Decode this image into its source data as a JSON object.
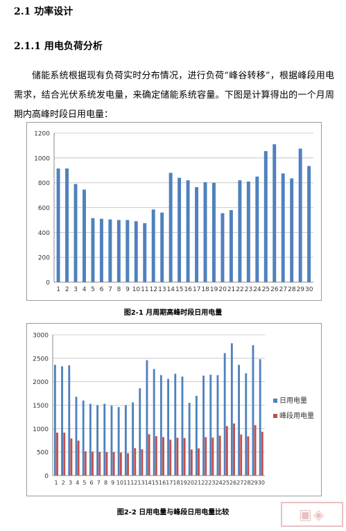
{
  "section_heading": "2.1 功率设计",
  "subsection_heading": "2.1.1 用电负荷分析",
  "paragraph": "储能系统根据现有负荷实时分布情况，进行负荷“峰谷转移”，根据峰段用电需求，结合光伏系统发电量，来确定储能系统容量。下图是计算得出的一个月周期内高峰时段日用电量：",
  "figure1_caption": "图2-1  月周期高峰时段日用电量",
  "figure2_caption": "图2-2  日用电量与峰段日用电量比较",
  "colors": {
    "daily": "#4f81bd",
    "peak": "#c0504d"
  },
  "watermark_icon": "seal-icon",
  "chart_data": [
    {
      "type": "bar",
      "title": "",
      "xlabel": "",
      "ylabel": "",
      "ylim": [
        0,
        1200
      ],
      "yticks": [
        0,
        200,
        400,
        600,
        800,
        1000,
        1200
      ],
      "grid": true,
      "categories": [
        "1",
        "2",
        "3",
        "4",
        "5",
        "6",
        "7",
        "8",
        "9",
        "10",
        "11",
        "12",
        "13",
        "14",
        "15",
        "16",
        "17",
        "18",
        "19",
        "20",
        "21",
        "22",
        "23",
        "24",
        "25",
        "26",
        "27",
        "28",
        "29",
        "30"
      ],
      "series": [
        {
          "values": [
            915,
            915,
            790,
            745,
            515,
            510,
            505,
            500,
            500,
            490,
            475,
            585,
            560,
            880,
            840,
            820,
            765,
            805,
            800,
            555,
            580,
            820,
            810,
            850,
            1055,
            1110,
            875,
            835,
            1075,
            935
          ]
        }
      ]
    },
    {
      "type": "bar",
      "title": "",
      "xlabel": "",
      "ylabel": "",
      "ylim": [
        0,
        3000
      ],
      "yticks": [
        0,
        500,
        1000,
        1500,
        2000,
        2500,
        3000
      ],
      "grid": true,
      "legend_position": "right",
      "categories": [
        "1",
        "2",
        "3",
        "4",
        "5",
        "6",
        "7",
        "8",
        "9",
        "10",
        "11",
        "12",
        "13",
        "14",
        "15",
        "16",
        "17",
        "18",
        "19",
        "20",
        "21",
        "22",
        "23",
        "24",
        "25",
        "26",
        "27",
        "28",
        "29",
        "30"
      ],
      "series": [
        {
          "name": "日用电量",
          "values": [
            2360,
            2330,
            2350,
            1680,
            1600,
            1530,
            1500,
            1530,
            1490,
            1460,
            1500,
            1560,
            1860,
            2460,
            2270,
            2140,
            2060,
            2170,
            2110,
            1550,
            1700,
            2130,
            2150,
            2140,
            2610,
            2820,
            2360,
            2180,
            2780,
            2480
          ]
        },
        {
          "name": "峰段用电量",
          "values": [
            915,
            915,
            790,
            745,
            515,
            510,
            505,
            500,
            500,
            490,
            475,
            585,
            560,
            880,
            840,
            820,
            765,
            805,
            800,
            555,
            580,
            820,
            810,
            850,
            1055,
            1110,
            875,
            835,
            1075,
            935
          ]
        }
      ]
    }
  ]
}
